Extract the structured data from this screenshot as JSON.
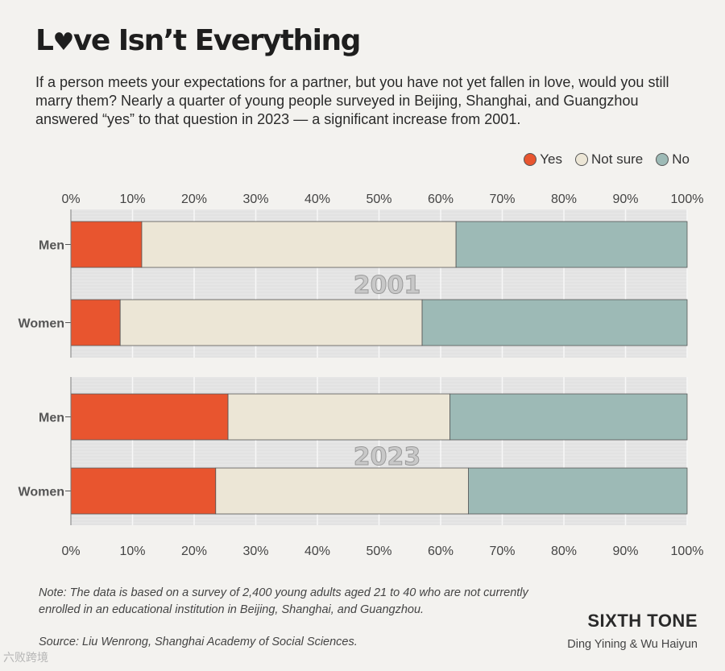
{
  "title_prefix": "L",
  "title_suffix": "ve Isn’t Everything",
  "subtitle": "If a person meets your expectations for a partner, but you have not yet fallen in love, would you still marry them? Nearly a quarter of young people surveyed in Beijing, Shanghai, and Guangzhou answered “yes” to that question in 2023 — a significant increase from 2001.",
  "legend": [
    {
      "label": "Yes",
      "color": "#e8552f"
    },
    {
      "label": "Not sure",
      "color": "#ece6d6"
    },
    {
      "label": "No",
      "color": "#9dbab6"
    }
  ],
  "chart_data": {
    "type": "bar",
    "orientation": "horizontal",
    "stacked": true,
    "x_ticks": [
      "0%",
      "10%",
      "20%",
      "30%",
      "40%",
      "50%",
      "60%",
      "70%",
      "80%",
      "90%",
      "100%"
    ],
    "xlim": [
      0,
      100
    ],
    "groups": [
      {
        "year": "2001",
        "bars": [
          {
            "category": "Men",
            "values": [
              11.5,
              51,
              37.5
            ]
          },
          {
            "category": "Women",
            "values": [
              8,
              49,
              43
            ]
          }
        ]
      },
      {
        "year": "2023",
        "bars": [
          {
            "category": "Men",
            "values": [
              25.5,
              36,
              38.5
            ]
          },
          {
            "category": "Women",
            "values": [
              23.5,
              41,
              35.5
            ]
          }
        ]
      }
    ],
    "series": [
      "Yes",
      "Not sure",
      "No"
    ],
    "legend_position": "top-right"
  },
  "note": "Note: The data is based on a survey of 2,400 young adults aged 21 to 40 who are not currently enrolled in an educational institution in Beijing, Shanghai, and Guangzhou.",
  "source": "Source: Liu Wenrong, Shanghai Academy of Social Sciences.",
  "brand": "SIXTH TONE",
  "credit": "Ding Yining & Wu Haiyun",
  "watermark": "六败跨境"
}
